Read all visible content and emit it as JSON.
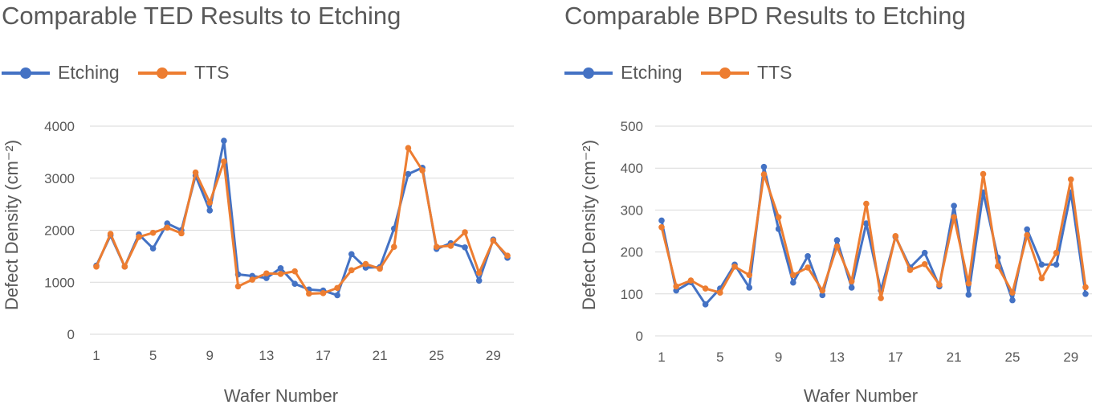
{
  "chart_data": [
    {
      "type": "line",
      "title": "Comparable TED Results to Etching",
      "xlabel": "Wafer Number",
      "ylabel": "Defect Density (cm⁻²)",
      "ylim": [
        0,
        4000
      ],
      "yticks": [
        0,
        1000,
        2000,
        3000,
        4000
      ],
      "xticks": [
        1,
        5,
        9,
        13,
        17,
        21,
        25,
        29
      ],
      "grid": true,
      "legend": "top-left",
      "x": [
        1,
        2,
        3,
        4,
        5,
        6,
        7,
        8,
        9,
        10,
        11,
        12,
        13,
        14,
        15,
        16,
        17,
        18,
        19,
        20,
        21,
        22,
        23,
        24,
        25,
        26,
        27,
        28,
        29,
        30
      ],
      "series": [
        {
          "name": "Etching",
          "color": "#4472C4",
          "values": [
            1320,
            1900,
            1300,
            1920,
            1650,
            2130,
            2000,
            3050,
            2380,
            3720,
            1150,
            1120,
            1080,
            1270,
            970,
            860,
            840,
            750,
            1540,
            1280,
            1290,
            2030,
            3080,
            3200,
            1640,
            1750,
            1670,
            1030,
            1820,
            1470
          ]
        },
        {
          "name": "TTS",
          "color": "#ED7D31",
          "values": [
            1300,
            1930,
            1300,
            1870,
            1950,
            2050,
            1940,
            3110,
            2530,
            3320,
            920,
            1050,
            1170,
            1160,
            1210,
            780,
            790,
            890,
            1230,
            1350,
            1260,
            1680,
            3580,
            3150,
            1680,
            1700,
            1960,
            1180,
            1800,
            1510
          ]
        }
      ]
    },
    {
      "type": "line",
      "title": "Comparable BPD Results to Etching",
      "xlabel": "Wafer Number",
      "ylabel": "Defect Density (cm⁻²)",
      "ylim": [
        0,
        500
      ],
      "yticks": [
        0,
        100,
        200,
        300,
        400,
        500
      ],
      "xticks": [
        1,
        5,
        9,
        13,
        17,
        21,
        25,
        29
      ],
      "grid": true,
      "legend": "top-left",
      "x": [
        1,
        2,
        3,
        4,
        5,
        6,
        7,
        8,
        9,
        10,
        11,
        12,
        13,
        14,
        15,
        16,
        17,
        18,
        19,
        20,
        21,
        22,
        23,
        24,
        25,
        26,
        27,
        28,
        29,
        30
      ],
      "series": [
        {
          "name": "Etching",
          "color": "#4472C4",
          "values": [
            275,
            108,
            128,
            75,
            113,
            170,
            115,
            403,
            255,
            127,
            190,
            97,
            228,
            115,
            268,
            108,
            236,
            163,
            198,
            118,
            310,
            98,
            342,
            187,
            85,
            254,
            170,
            170,
            342,
            100
          ]
        },
        {
          "name": "TTS",
          "color": "#ED7D31",
          "values": [
            259,
            118,
            132,
            113,
            103,
            165,
            145,
            385,
            283,
            145,
            163,
            108,
            213,
            130,
            315,
            90,
            238,
            157,
            171,
            122,
            283,
            125,
            386,
            166,
            103,
            240,
            137,
            198,
            373,
            116
          ]
        }
      ]
    }
  ]
}
